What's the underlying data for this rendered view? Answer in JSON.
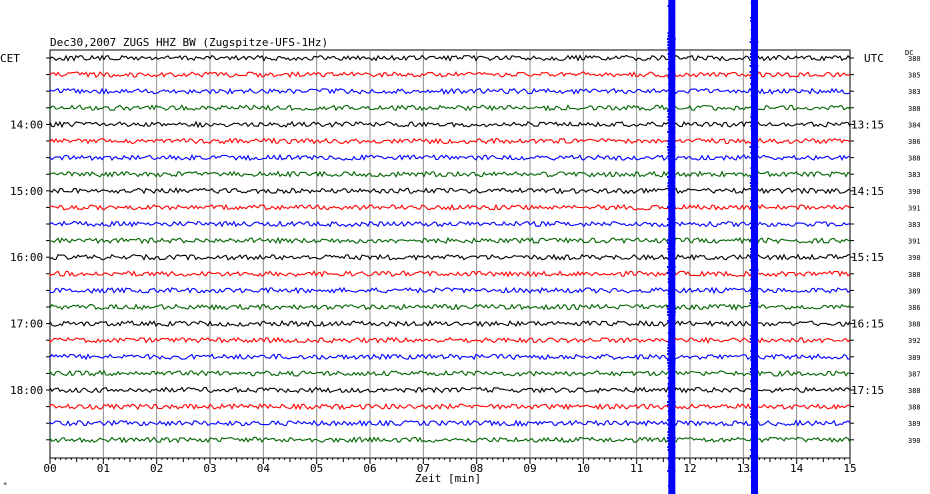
{
  "chart_data": {
    "type": "line",
    "title": "Dec30,2007   ZUGS HHZ BW (Zugspitze-UFS-1Hz)",
    "left_axis_title": "CET",
    "right_axis_title": "UTC",
    "dc_title": "DC",
    "xlabel": "Zeit [min]",
    "x_ticks": [
      "00",
      "01",
      "02",
      "03",
      "04",
      "05",
      "06",
      "07",
      "08",
      "09",
      "10",
      "11",
      "12",
      "13",
      "14",
      "15"
    ],
    "xlim": [
      0,
      15
    ],
    "trace_interval_min": 15,
    "trace_colors": [
      "#000000",
      "#ff0000",
      "#0000ff",
      "#006400"
    ],
    "cet_hour_labels": [
      "14:00",
      "15:00",
      "16:00",
      "17:00",
      "18:00"
    ],
    "utc_hour_labels": [
      "13:15",
      "14:15",
      "15:15",
      "16:15",
      "17:15"
    ],
    "hour_label_trace_index": [
      4,
      8,
      12,
      16,
      20
    ],
    "dc_values": [
      380,
      385,
      383,
      388,
      384,
      386,
      388,
      383,
      390,
      391,
      383,
      391,
      390,
      388,
      389,
      386,
      388,
      392,
      389,
      387,
      388,
      388,
      389,
      390
    ],
    "event_markers": [
      {
        "time_min": 11.65,
        "color": "#0000ff"
      },
      {
        "time_min": 13.2,
        "color": "#0000ff"
      }
    ],
    "corner_mark": "*",
    "grid": true
  }
}
